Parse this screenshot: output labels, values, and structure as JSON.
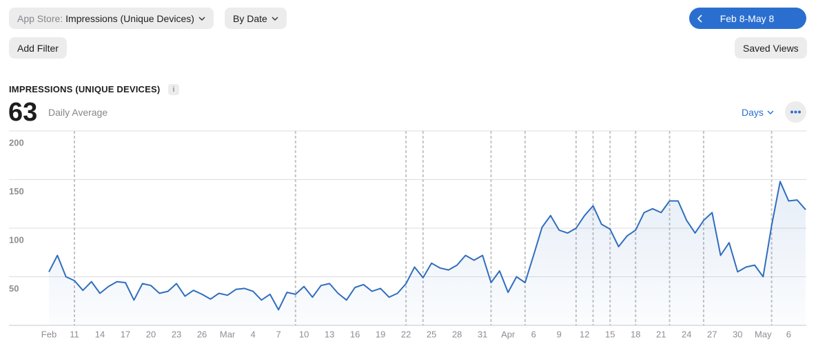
{
  "toolbar": {
    "source_label": "App Store:",
    "metric": "Impressions (Unique Devices)",
    "group_by": "By Date",
    "add_filter": "Add Filter",
    "date_range": "Feb 8-May 8",
    "saved_views": "Saved Views"
  },
  "summary": {
    "metric_title": "IMPRESSIONS (UNIQUE DEVICES)",
    "value": 63,
    "label": "Daily Average",
    "granularity": "Days"
  },
  "chart_data": {
    "type": "line",
    "color": "#2f6dbd",
    "grid": true,
    "categories": [
      "Feb",
      null,
      null,
      "11",
      null,
      null,
      "14",
      null,
      null,
      "17",
      null,
      null,
      "20",
      null,
      null,
      "23",
      null,
      null,
      "26",
      null,
      null,
      "Mar",
      null,
      null,
      "4",
      null,
      null,
      "7",
      null,
      null,
      "10",
      null,
      null,
      "13",
      null,
      null,
      "16",
      null,
      null,
      "19",
      null,
      null,
      "22",
      null,
      null,
      "25",
      null,
      null,
      "28",
      null,
      null,
      "31",
      null,
      null,
      "Apr",
      null,
      null,
      "6",
      null,
      null,
      "9",
      null,
      null,
      "12",
      null,
      null,
      "15",
      null,
      null,
      "18",
      null,
      null,
      "21",
      null,
      null,
      "24",
      null,
      null,
      "27",
      null,
      null,
      "30",
      null,
      null,
      "May",
      null,
      null,
      "6",
      null,
      null
    ],
    "values": [
      55,
      72,
      50,
      46,
      36,
      45,
      33,
      40,
      45,
      44,
      26,
      43,
      41,
      33,
      35,
      43,
      30,
      36,
      32,
      27,
      33,
      31,
      37,
      38,
      35,
      26,
      32,
      16,
      34,
      32,
      40,
      29,
      41,
      43,
      33,
      26,
      39,
      42,
      35,
      38,
      29,
      33,
      43,
      60,
      49,
      64,
      59,
      57,
      62,
      72,
      67,
      72,
      44,
      56,
      34,
      50,
      44,
      72,
      101,
      113,
      98,
      95,
      100,
      113,
      123,
      104,
      99,
      81,
      92,
      98,
      116,
      120,
      116,
      128,
      128,
      108,
      95,
      108,
      116,
      72,
      85,
      55,
      60,
      62,
      50,
      103,
      148,
      128,
      129,
      119
    ],
    "ylim": [
      0,
      200
    ],
    "yticks": [
      50,
      100,
      150,
      200
    ]
  }
}
